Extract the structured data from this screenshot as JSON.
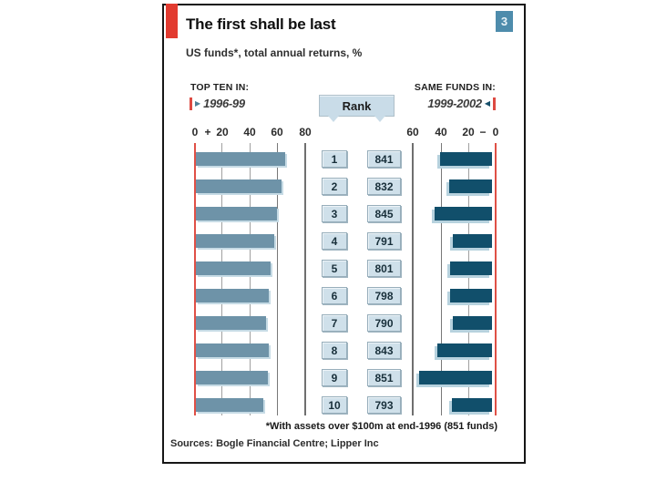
{
  "header": {
    "title": "The first shall be last",
    "subtitle": "US funds*, total annual returns, %",
    "badge": "3"
  },
  "left_panel": {
    "label": "TOP TEN IN:",
    "period": "1996-99",
    "arrow_icon": "▶"
  },
  "right_panel": {
    "label": "SAME FUNDS IN:",
    "period": "1999-2002",
    "arrow_icon": "◀"
  },
  "rank_callout_label": "Rank",
  "left_axis": {
    "ticks": [
      "0",
      "+",
      "20",
      "40",
      "60",
      "80"
    ]
  },
  "right_axis": {
    "ticks": [
      "60",
      "40",
      "20",
      "−",
      "0"
    ]
  },
  "rows": [
    {
      "rank": "1",
      "return_96_99": 65,
      "rank_99_02": "841",
      "return_99_02": -37
    },
    {
      "rank": "2",
      "return_96_99": 62,
      "rank_99_02": "832",
      "return_99_02": -31
    },
    {
      "rank": "3",
      "return_96_99": 59,
      "rank_99_02": "845",
      "return_99_02": -41
    },
    {
      "rank": "4",
      "return_96_99": 57,
      "rank_99_02": "791",
      "return_99_02": -28
    },
    {
      "rank": "5",
      "return_96_99": 54,
      "rank_99_02": "801",
      "return_99_02": -30
    },
    {
      "rank": "6",
      "return_96_99": 53,
      "rank_99_02": "798",
      "return_99_02": -30
    },
    {
      "rank": "7",
      "return_96_99": 51,
      "rank_99_02": "790",
      "return_99_02": -28
    },
    {
      "rank": "8",
      "return_96_99": 53,
      "rank_99_02": "843",
      "return_99_02": -39
    },
    {
      "rank": "9",
      "return_96_99": 52,
      "rank_99_02": "851",
      "return_99_02": -52
    },
    {
      "rank": "10",
      "return_96_99": 49,
      "rank_99_02": "793",
      "return_99_02": -29
    }
  ],
  "footnote": "*With assets over $100m at end-1996 (851 funds)",
  "sources": "Sources: Bogle Financial Centre; Lipper Inc",
  "colors": {
    "accent_red": "#e23b30",
    "axis_red": "#df5046",
    "bar_left": "#6e93a8",
    "bar_right": "#114f6b",
    "box_fill": "#cfe0ea",
    "badge_fill": "#4e8cac",
    "shadow_blue": "#b7d2de"
  },
  "chart_data": {
    "type": "bar",
    "orientation": "horizontal",
    "title": "The first shall be last",
    "subtitle": "US funds*, total annual returns, %",
    "categories": [
      "1",
      "2",
      "3",
      "4",
      "5",
      "6",
      "7",
      "8",
      "9",
      "10"
    ],
    "series": [
      {
        "name": "Top ten in 1996-99 (total annual return, %)",
        "values": [
          65,
          62,
          59,
          57,
          54,
          53,
          51,
          53,
          52,
          49
        ],
        "axis_range": [
          0,
          80
        ],
        "axis_ticks": [
          0,
          20,
          40,
          60,
          80
        ]
      },
      {
        "name": "Same funds in 1999-2002 (total annual return, %)",
        "values": [
          -37,
          -31,
          -41,
          -28,
          -30,
          -30,
          -28,
          -39,
          -52,
          -29
        ],
        "axis_range": [
          -60,
          0
        ],
        "axis_ticks": [
          -60,
          -40,
          -20,
          0
        ]
      }
    ],
    "rank_in_1999_2002": [
      "841",
      "832",
      "845",
      "791",
      "801",
      "798",
      "790",
      "843",
      "851",
      "793"
    ],
    "legend_position": "none",
    "grid": true,
    "footnote": "*With assets over $100m at end-1996 (851 funds)",
    "sources": "Sources: Bogle Financial Centre; Lipper Inc"
  }
}
